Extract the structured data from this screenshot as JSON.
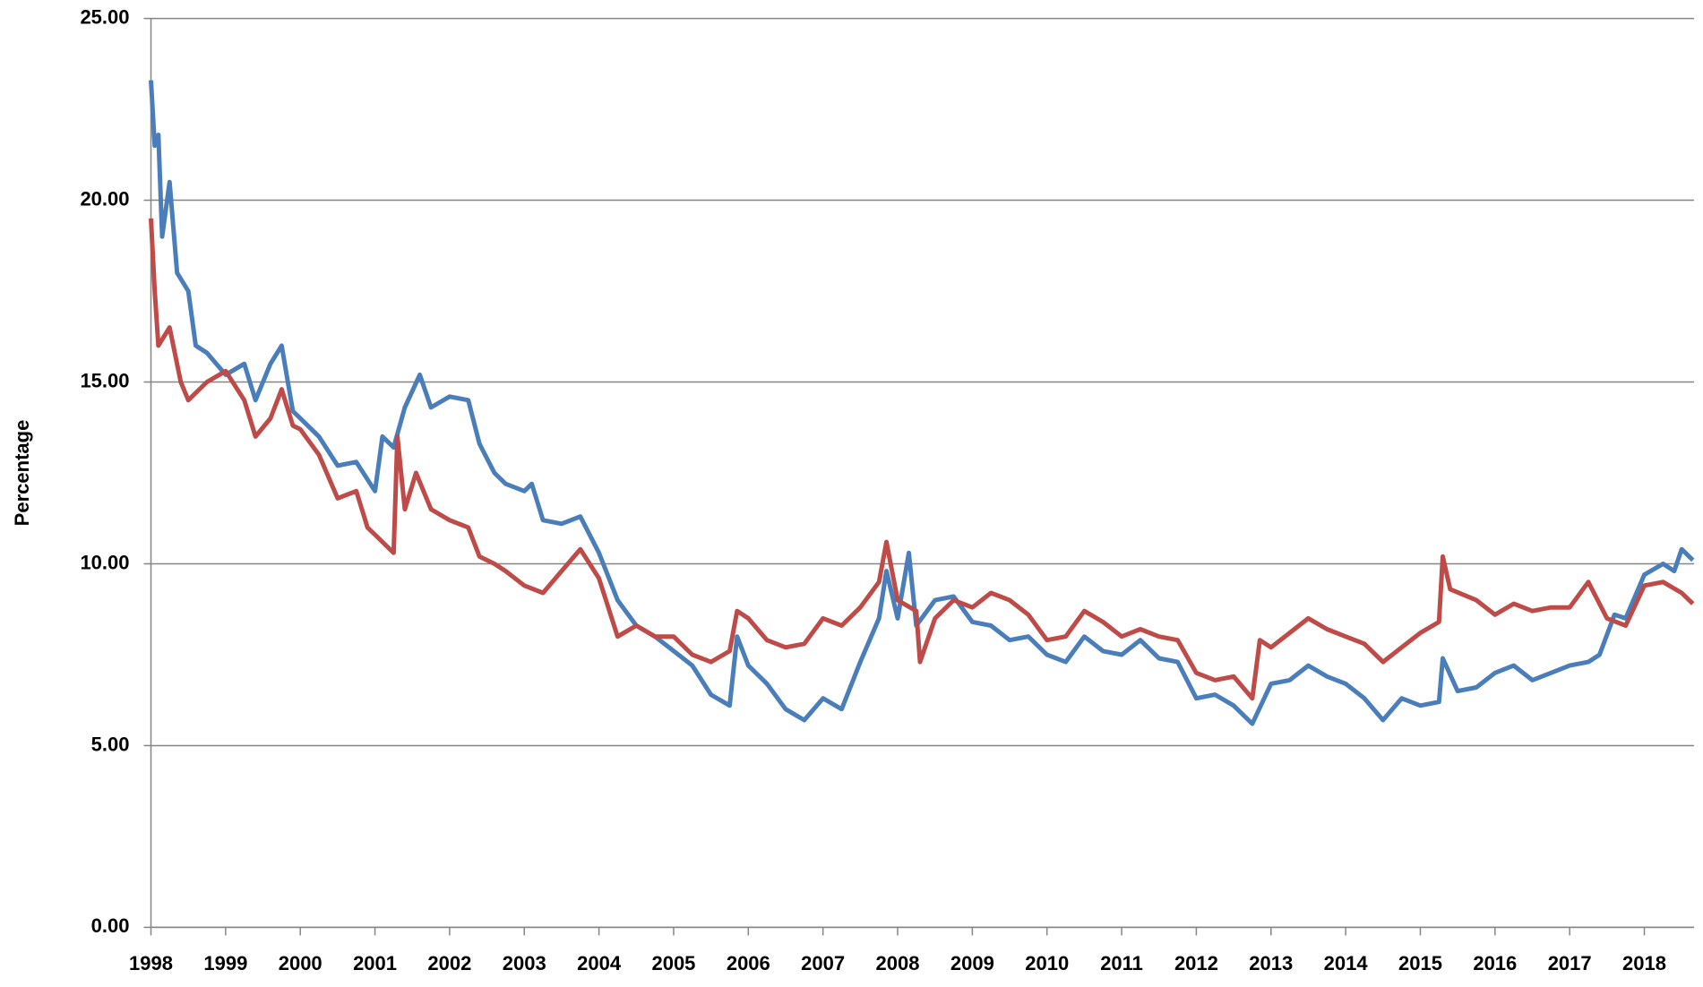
{
  "chart_data": {
    "type": "line",
    "y_label": "Percentage",
    "xlim": [
      1998,
      2018.65
    ],
    "xticks": [
      1998,
      1999,
      2000,
      2001,
      2002,
      2003,
      2004,
      2005,
      2006,
      2007,
      2008,
      2009,
      2010,
      2011,
      2012,
      2013,
      2014,
      2015,
      2016,
      2017,
      2018
    ],
    "ylim": [
      0,
      25
    ],
    "yticks": [
      {
        "value": 0,
        "label": "0.00"
      },
      {
        "value": 5,
        "label": "5.00"
      },
      {
        "value": 10,
        "label": "10.00"
      },
      {
        "value": 15,
        "label": "15.00"
      },
      {
        "value": 20,
        "label": "20.00"
      },
      {
        "value": 25,
        "label": "25.00"
      }
    ],
    "grid": true,
    "series": [
      {
        "color": "#4a7ebb",
        "x": [
          1998.0,
          1998.05,
          1998.1,
          1998.15,
          1998.25,
          1998.35,
          1998.5,
          1998.6,
          1998.75,
          1999.0,
          1999.25,
          1999.4,
          1999.6,
          1999.75,
          1999.9,
          2000.0,
          2000.25,
          2000.5,
          2000.75,
          2001.0,
          2001.1,
          2001.25,
          2001.4,
          2001.6,
          2001.75,
          2002.0,
          2002.25,
          2002.4,
          2002.6,
          2002.75,
          2003.0,
          2003.1,
          2003.25,
          2003.5,
          2003.75,
          2004.0,
          2004.25,
          2004.5,
          2004.75,
          2005.0,
          2005.25,
          2005.5,
          2005.75,
          2005.85,
          2006.0,
          2006.25,
          2006.5,
          2006.75,
          2007.0,
          2007.25,
          2007.5,
          2007.75,
          2007.85,
          2008.0,
          2008.15,
          2008.25,
          2008.5,
          2008.75,
          2009.0,
          2009.25,
          2009.5,
          2009.75,
          2010.0,
          2010.25,
          2010.5,
          2010.75,
          2011.0,
          2011.25,
          2011.5,
          2011.75,
          2012.0,
          2012.25,
          2012.5,
          2012.75,
          2013.0,
          2013.25,
          2013.5,
          2013.75,
          2014.0,
          2014.25,
          2014.5,
          2014.75,
          2015.0,
          2015.25,
          2015.3,
          2015.5,
          2015.75,
          2016.0,
          2016.25,
          2016.5,
          2016.75,
          2017.0,
          2017.25,
          2017.4,
          2017.6,
          2017.75,
          2018.0,
          2018.25,
          2018.4,
          2018.5,
          2018.65
        ],
        "values": [
          23.3,
          21.5,
          21.8,
          19.0,
          20.5,
          18.0,
          17.5,
          16.0,
          15.8,
          15.2,
          15.5,
          14.5,
          15.5,
          16.0,
          14.2,
          14.0,
          13.5,
          12.7,
          12.8,
          12.0,
          13.5,
          13.2,
          14.3,
          15.2,
          14.3,
          14.6,
          14.5,
          13.3,
          12.5,
          12.2,
          12.0,
          12.2,
          11.2,
          11.1,
          11.3,
          10.3,
          9.0,
          8.3,
          8.0,
          7.6,
          7.2,
          6.4,
          6.1,
          8.0,
          7.2,
          6.7,
          6.0,
          5.7,
          6.3,
          6.0,
          7.3,
          8.5,
          9.8,
          8.5,
          10.3,
          8.3,
          9.0,
          9.1,
          8.4,
          8.3,
          7.9,
          8.0,
          7.5,
          7.3,
          8.0,
          7.6,
          7.5,
          7.9,
          7.4,
          7.3,
          6.3,
          6.4,
          6.1,
          5.6,
          6.7,
          6.8,
          7.2,
          6.9,
          6.7,
          6.3,
          5.7,
          6.3,
          6.1,
          6.2,
          7.4,
          6.5,
          6.6,
          7.0,
          7.2,
          6.8,
          7.0,
          7.2,
          7.3,
          7.5,
          8.6,
          8.5,
          9.7,
          10.0,
          9.8,
          10.4,
          10.1
        ]
      },
      {
        "color": "#be4b48",
        "x": [
          1998.0,
          1998.05,
          1998.1,
          1998.25,
          1998.4,
          1998.5,
          1998.75,
          1999.0,
          1999.25,
          1999.4,
          1999.6,
          1999.75,
          1999.9,
          2000.0,
          2000.25,
          2000.5,
          2000.75,
          2000.9,
          2001.0,
          2001.25,
          2001.3,
          2001.4,
          2001.55,
          2001.75,
          2002.0,
          2002.25,
          2002.4,
          2002.6,
          2002.75,
          2003.0,
          2003.25,
          2003.5,
          2003.75,
          2004.0,
          2004.25,
          2004.5,
          2004.75,
          2005.0,
          2005.25,
          2005.5,
          2005.75,
          2005.85,
          2006.0,
          2006.25,
          2006.5,
          2006.75,
          2007.0,
          2007.25,
          2007.5,
          2007.75,
          2007.85,
          2008.0,
          2008.25,
          2008.3,
          2008.5,
          2008.75,
          2009.0,
          2009.25,
          2009.5,
          2009.75,
          2010.0,
          2010.25,
          2010.5,
          2010.75,
          2011.0,
          2011.25,
          2011.5,
          2011.75,
          2012.0,
          2012.25,
          2012.5,
          2012.75,
          2012.85,
          2013.0,
          2013.25,
          2013.5,
          2013.75,
          2014.0,
          2014.25,
          2014.5,
          2014.75,
          2015.0,
          2015.25,
          2015.3,
          2015.4,
          2015.75,
          2016.0,
          2016.25,
          2016.5,
          2016.75,
          2017.0,
          2017.25,
          2017.5,
          2017.75,
          2018.0,
          2018.25,
          2018.5,
          2018.65
        ],
        "values": [
          19.5,
          17.5,
          16.0,
          16.5,
          15.0,
          14.5,
          15.0,
          15.3,
          14.5,
          13.5,
          14.0,
          14.8,
          13.8,
          13.7,
          13.0,
          11.8,
          12.0,
          11.0,
          10.8,
          10.3,
          13.5,
          11.5,
          12.5,
          11.5,
          11.2,
          11.0,
          10.2,
          10.0,
          9.8,
          9.4,
          9.2,
          9.8,
          10.4,
          9.6,
          8.0,
          8.3,
          8.0,
          8.0,
          7.5,
          7.3,
          7.6,
          8.7,
          8.5,
          7.9,
          7.7,
          7.8,
          8.5,
          8.3,
          8.8,
          9.5,
          10.6,
          9.0,
          8.7,
          7.3,
          8.5,
          9.0,
          8.8,
          9.2,
          9.0,
          8.6,
          7.9,
          8.0,
          8.7,
          8.4,
          8.0,
          8.2,
          8.0,
          7.9,
          7.0,
          6.8,
          6.9,
          6.3,
          7.9,
          7.7,
          8.1,
          8.5,
          8.2,
          8.0,
          7.8,
          7.3,
          7.7,
          8.1,
          8.4,
          10.2,
          9.3,
          9.0,
          8.6,
          8.9,
          8.7,
          8.8,
          8.8,
          9.5,
          8.5,
          8.3,
          9.4,
          9.5,
          9.2,
          8.9
        ]
      }
    ]
  }
}
